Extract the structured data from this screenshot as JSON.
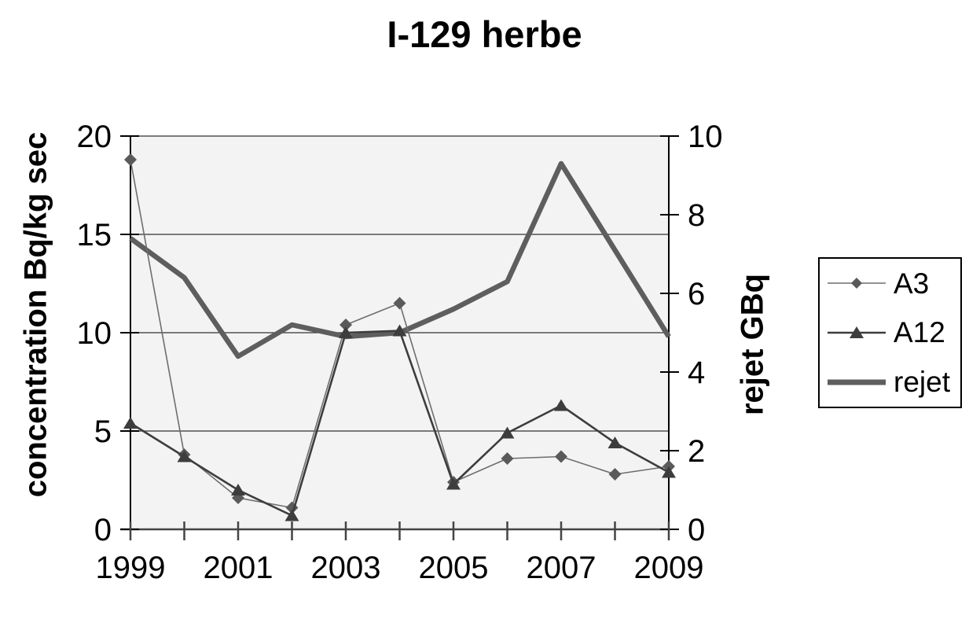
{
  "chart_data": {
    "type": "line",
    "title": "I-129 herbe",
    "x": [
      1999,
      2000,
      2001,
      2002,
      2003,
      2004,
      2005,
      2006,
      2007,
      2008,
      2009
    ],
    "axes": {
      "left": {
        "label": "concentration Bq/kg sec",
        "min": 0,
        "max": 20,
        "ticks": [
          0,
          5,
          10,
          15,
          20
        ]
      },
      "right": {
        "label": "rejet GBq",
        "min": 0,
        "max": 10,
        "ticks": [
          0,
          2,
          4,
          6,
          8,
          10
        ]
      },
      "bottom": {
        "labeled_years": [
          1999,
          2001,
          2003,
          2005,
          2007,
          2009
        ]
      }
    },
    "grid": {
      "horizontal": true,
      "vertical": false
    },
    "plot_bg": "#f3f3f3",
    "grid_color": "#333333",
    "axis_color": "#000000",
    "legend_position": "right",
    "series": [
      {
        "name": "A3",
        "axis": "left",
        "marker": "diamond",
        "color": "#6e6e6e",
        "marker_color": "#5a5a5a",
        "line_width": 1.6,
        "values": [
          18.8,
          3.8,
          1.6,
          1.1,
          10.4,
          11.5,
          2.4,
          3.6,
          3.7,
          2.8,
          3.2
        ]
      },
      {
        "name": "A12",
        "axis": "left",
        "marker": "triangle",
        "color": "#3d3d3d",
        "marker_color": "#3d3d3d",
        "line_width": 2.6,
        "values": [
          5.4,
          3.7,
          2.0,
          0.7,
          10.0,
          10.1,
          2.3,
          4.9,
          6.3,
          4.4,
          2.9
        ]
      },
      {
        "name": "rejet",
        "axis": "right",
        "marker": "none",
        "color": "#5e5e5e",
        "marker_color": "#5e5e5e",
        "line_width": 6.5,
        "values": [
          7.4,
          6.4,
          4.4,
          5.2,
          4.9,
          5.0,
          5.6,
          6.3,
          9.3,
          7.1,
          4.9
        ]
      }
    ]
  }
}
